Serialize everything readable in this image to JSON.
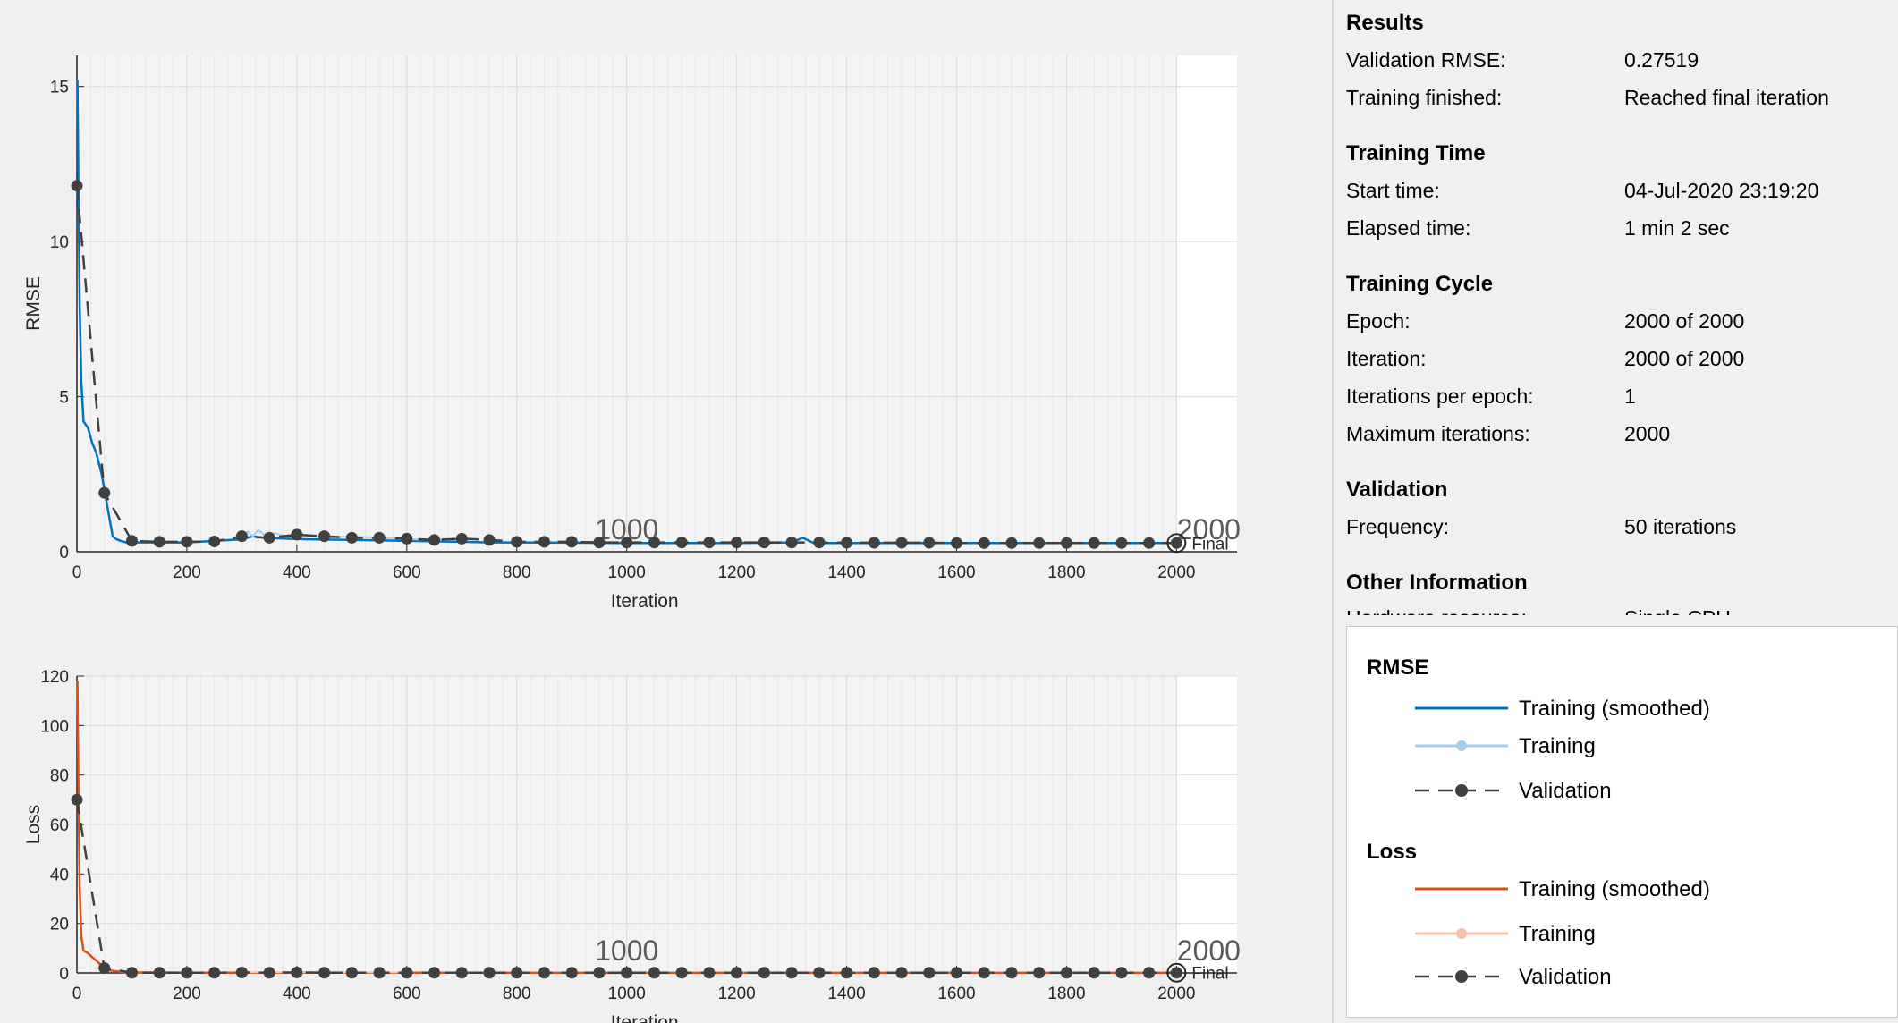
{
  "chart_data": [
    {
      "type": "line",
      "title": "",
      "xlabel": "Iteration",
      "ylabel": "RMSE",
      "xlim": [
        0,
        2110
      ],
      "ylim": [
        0,
        16
      ],
      "xticks": [
        0,
        200,
        400,
        600,
        800,
        1000,
        1200,
        1400,
        1600,
        1800,
        2000
      ],
      "yticks": [
        0,
        5,
        10,
        15
      ],
      "grid": true,
      "epoch_markers": [
        {
          "x": 1000,
          "label": "1000"
        },
        {
          "x": 2000,
          "label": "2000"
        }
      ],
      "final_label": "Final",
      "series": [
        {
          "name": "Training (smoothed)",
          "color": "#0072bd",
          "x": [
            1,
            3,
            5,
            8,
            12,
            20,
            28,
            35,
            45,
            55,
            65,
            72,
            80,
            90,
            100,
            150,
            200,
            250,
            300,
            320,
            340,
            380,
            420,
            500,
            600,
            700,
            750,
            800,
            1000,
            1200,
            1300,
            1320,
            1340,
            1400,
            1600,
            1800,
            2000
          ],
          "y": [
            15.2,
            11.5,
            8.0,
            5.5,
            4.2,
            4.0,
            3.5,
            3.2,
            2.5,
            1.5,
            0.5,
            0.4,
            0.35,
            0.3,
            0.3,
            0.3,
            0.3,
            0.35,
            0.4,
            0.5,
            0.45,
            0.42,
            0.4,
            0.38,
            0.35,
            0.32,
            0.3,
            0.3,
            0.28,
            0.28,
            0.3,
            0.45,
            0.28,
            0.28,
            0.28,
            0.28,
            0.28
          ]
        },
        {
          "name": "Training",
          "color": "#a6cee8",
          "x": [
            300,
            310,
            320,
            330,
            340,
            360,
            380,
            400,
            450,
            500,
            600,
            700
          ],
          "y": [
            0.4,
            0.65,
            0.5,
            0.7,
            0.55,
            0.6,
            0.5,
            0.55,
            0.45,
            0.5,
            0.4,
            0.38
          ]
        },
        {
          "name": "Validation",
          "color": "#404040",
          "x": [
            0,
            50,
            100,
            150,
            200,
            250,
            300,
            350,
            400,
            450,
            500,
            550,
            600,
            650,
            700,
            750,
            800,
            850,
            900,
            950,
            1000,
            1050,
            1100,
            1150,
            1200,
            1250,
            1300,
            1350,
            1400,
            1450,
            1500,
            1550,
            1600,
            1650,
            1700,
            1750,
            1800,
            1850,
            1900,
            1950,
            2000
          ],
          "y": [
            11.8,
            1.9,
            0.35,
            0.32,
            0.32,
            0.33,
            0.5,
            0.45,
            0.55,
            0.5,
            0.45,
            0.45,
            0.42,
            0.38,
            0.42,
            0.38,
            0.32,
            0.32,
            0.32,
            0.3,
            0.3,
            0.3,
            0.3,
            0.3,
            0.3,
            0.3,
            0.3,
            0.3,
            0.29,
            0.29,
            0.29,
            0.29,
            0.28,
            0.28,
            0.28,
            0.28,
            0.28,
            0.28,
            0.28,
            0.28,
            0.28
          ]
        }
      ]
    },
    {
      "type": "line",
      "title": "",
      "xlabel": "Iteration",
      "ylabel": "Loss",
      "xlim": [
        0,
        2110
      ],
      "ylim": [
        0,
        120
      ],
      "xticks": [
        0,
        200,
        400,
        600,
        800,
        1000,
        1200,
        1400,
        1600,
        1800,
        2000
      ],
      "yticks": [
        0,
        20,
        40,
        60,
        80,
        100,
        120
      ],
      "grid": true,
      "epoch_markers": [
        {
          "x": 1000,
          "label": "1000"
        },
        {
          "x": 2000,
          "label": "2000"
        }
      ],
      "final_label": "Final",
      "series": [
        {
          "name": "Training (smoothed)",
          "color": "#d95319",
          "x": [
            1,
            3,
            5,
            8,
            12,
            20,
            30,
            45,
            60,
            80,
            100,
            200,
            500,
            1000,
            1500,
            2000
          ],
          "y": [
            118,
            70,
            35,
            15,
            9,
            8,
            6,
            3,
            1,
            0.4,
            0.2,
            0.1,
            0.1,
            0.05,
            0.05,
            0.05
          ]
        },
        {
          "name": "Training",
          "color": "#f6c1a6",
          "x": [
            300,
            400,
            500,
            600
          ],
          "y": [
            0.3,
            0.3,
            0.2,
            0.2
          ]
        },
        {
          "name": "Validation",
          "color": "#404040",
          "x": [
            0,
            50,
            100,
            150,
            200,
            250,
            300,
            350,
            400,
            450,
            500,
            550,
            600,
            650,
            700,
            750,
            800,
            850,
            900,
            950,
            1000,
            1050,
            1100,
            1150,
            1200,
            1250,
            1300,
            1350,
            1400,
            1450,
            1500,
            1550,
            1600,
            1650,
            1700,
            1750,
            1800,
            1850,
            1900,
            1950,
            2000
          ],
          "y": [
            70,
            2,
            0.1,
            0.1,
            0.1,
            0.1,
            0.2,
            0.1,
            0.2,
            0.1,
            0.1,
            0.1,
            0.1,
            0.1,
            0.1,
            0.1,
            0.1,
            0.1,
            0.1,
            0.1,
            0.1,
            0.1,
            0.1,
            0.1,
            0.1,
            0.1,
            0.1,
            0.1,
            0.1,
            0.1,
            0.1,
            0.1,
            0.1,
            0.1,
            0.1,
            0.1,
            0.1,
            0.1,
            0.1,
            0.1,
            0.1
          ]
        }
      ]
    }
  ],
  "info": {
    "results": {
      "title": "Results",
      "rows": [
        {
          "label": "Validation RMSE:",
          "value": "0.27519"
        },
        {
          "label": "Training finished:",
          "value": "Reached final iteration"
        }
      ]
    },
    "time": {
      "title": "Training Time",
      "rows": [
        {
          "label": "Start time:",
          "value": "04-Jul-2020 23:19:20"
        },
        {
          "label": "Elapsed time:",
          "value": "1 min 2 sec"
        }
      ]
    },
    "cycle": {
      "title": "Training Cycle",
      "rows": [
        {
          "label": "Epoch:",
          "value": "2000 of 2000"
        },
        {
          "label": "Iteration:",
          "value": "2000 of 2000"
        },
        {
          "label": "Iterations per epoch:",
          "value": "1"
        },
        {
          "label": "Maximum iterations:",
          "value": "2000"
        }
      ]
    },
    "validation": {
      "title": "Validation",
      "rows": [
        {
          "label": "Frequency:",
          "value": "50 iterations"
        }
      ]
    },
    "other": {
      "title": "Other Information",
      "rows": [
        {
          "label": "Hardware resource:",
          "value": "Single CPU"
        }
      ]
    }
  },
  "legend": {
    "rmse": {
      "title": "RMSE",
      "items": [
        "Training (smoothed)",
        "Training",
        "Validation"
      ],
      "colors": [
        "#0072bd",
        "#a6cee8",
        "#404040"
      ]
    },
    "loss": {
      "title": "Loss",
      "items": [
        "Training (smoothed)",
        "Training",
        "Validation"
      ],
      "colors": [
        "#d95319",
        "#f6c1a6",
        "#404040"
      ]
    }
  }
}
